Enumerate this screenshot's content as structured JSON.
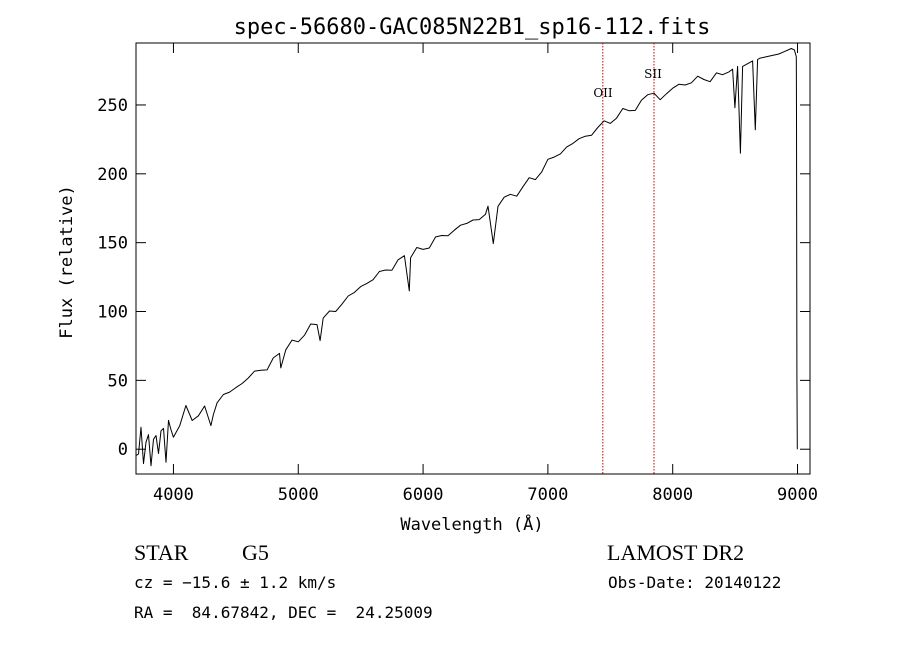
{
  "chart_data": {
    "type": "line",
    "title": "spec-56680-GAC085N22B1_sp16-112.fits",
    "xlabel": "Wavelength (Å)",
    "ylabel": "Flux (relative)",
    "xlim": [
      3700,
      9100
    ],
    "ylim": [
      -18,
      295
    ],
    "x_ticks": [
      4000,
      5000,
      6000,
      7000,
      8000,
      9000
    ],
    "y_ticks": [
      0,
      50,
      100,
      150,
      200,
      250
    ],
    "grid": false,
    "line_color": "#000000",
    "marker_color": "#cc0000",
    "series": [
      {
        "points": [
          [
            3700,
            2
          ],
          [
            3720,
            -5
          ],
          [
            3740,
            12
          ],
          [
            3760,
            -8
          ],
          [
            3780,
            6
          ],
          [
            3800,
            10
          ],
          [
            3820,
            -12
          ],
          [
            3840,
            5
          ],
          [
            3860,
            12
          ],
          [
            3880,
            0
          ],
          [
            3900,
            8
          ],
          [
            3920,
            14
          ],
          [
            3940,
            -2
          ],
          [
            3960,
            18
          ],
          [
            3980,
            8
          ],
          [
            4000,
            15
          ],
          [
            4050,
            20
          ],
          [
            4100,
            24
          ],
          [
            4150,
            22
          ],
          [
            4200,
            30
          ],
          [
            4250,
            28
          ],
          [
            4300,
            15
          ],
          [
            4320,
            30
          ],
          [
            4350,
            34
          ],
          [
            4400,
            38
          ],
          [
            4450,
            42
          ],
          [
            4500,
            45
          ],
          [
            4550,
            48
          ],
          [
            4600,
            52
          ],
          [
            4650,
            55
          ],
          [
            4700,
            58
          ],
          [
            4750,
            60
          ],
          [
            4800,
            64
          ],
          [
            4850,
            68
          ],
          [
            4860,
            62
          ],
          [
            4900,
            72
          ],
          [
            4950,
            76
          ],
          [
            5000,
            80
          ],
          [
            5050,
            85
          ],
          [
            5100,
            88
          ],
          [
            5150,
            90
          ],
          [
            5175,
            82
          ],
          [
            5200,
            94
          ],
          [
            5250,
            98
          ],
          [
            5300,
            102
          ],
          [
            5350,
            106
          ],
          [
            5400,
            110
          ],
          [
            5450,
            114
          ],
          [
            5500,
            118
          ],
          [
            5550,
            121
          ],
          [
            5600,
            124
          ],
          [
            5650,
            127
          ],
          [
            5700,
            130
          ],
          [
            5750,
            133
          ],
          [
            5800,
            136
          ],
          [
            5850,
            138
          ],
          [
            5890,
            118
          ],
          [
            5900,
            140
          ],
          [
            5950,
            143
          ],
          [
            6000,
            146
          ],
          [
            6050,
            149
          ],
          [
            6100,
            152
          ],
          [
            6150,
            154
          ],
          [
            6200,
            157
          ],
          [
            6250,
            159
          ],
          [
            6300,
            162
          ],
          [
            6350,
            164
          ],
          [
            6400,
            166
          ],
          [
            6450,
            168
          ],
          [
            6500,
            171
          ],
          [
            6520,
            175
          ],
          [
            6563,
            150
          ],
          [
            6600,
            178
          ],
          [
            6650,
            181
          ],
          [
            6700,
            184
          ],
          [
            6750,
            187
          ],
          [
            6800,
            190
          ],
          [
            6850,
            194
          ],
          [
            6900,
            198
          ],
          [
            6950,
            203
          ],
          [
            7000,
            208
          ],
          [
            7050,
            212
          ],
          [
            7100,
            216
          ],
          [
            7150,
            219
          ],
          [
            7200,
            222
          ],
          [
            7250,
            225
          ],
          [
            7300,
            227
          ],
          [
            7350,
            230
          ],
          [
            7400,
            233
          ],
          [
            7450,
            236
          ],
          [
            7500,
            239
          ],
          [
            7550,
            242
          ],
          [
            7600,
            244
          ],
          [
            7650,
            246
          ],
          [
            7700,
            249
          ],
          [
            7750,
            252
          ],
          [
            7800,
            256
          ],
          [
            7850,
            260
          ],
          [
            7900,
            254
          ],
          [
            7950,
            258
          ],
          [
            8000,
            262
          ],
          [
            8050,
            264
          ],
          [
            8100,
            266
          ],
          [
            8150,
            267
          ],
          [
            8200,
            268
          ],
          [
            8250,
            269
          ],
          [
            8300,
            270
          ],
          [
            8350,
            271
          ],
          [
            8400,
            272
          ],
          [
            8450,
            274
          ],
          [
            8480,
            276
          ],
          [
            8498,
            248
          ],
          [
            8520,
            278
          ],
          [
            8542,
            215
          ],
          [
            8560,
            278
          ],
          [
            8600,
            280
          ],
          [
            8640,
            282
          ],
          [
            8662,
            232
          ],
          [
            8680,
            283
          ],
          [
            8700,
            284
          ],
          [
            8750,
            285
          ],
          [
            8800,
            286
          ],
          [
            8850,
            287
          ],
          [
            8900,
            289
          ],
          [
            8950,
            291
          ],
          [
            8975,
            290
          ],
          [
            8990,
            285
          ],
          [
            8992,
            245
          ],
          [
            8995,
            55
          ],
          [
            8998,
            0
          ]
        ]
      }
    ],
    "markers": [
      {
        "x": 7440,
        "label": "OII"
      },
      {
        "x": 7850,
        "label": "SII"
      }
    ]
  },
  "footer": {
    "object_class": "STAR",
    "subclass": "G5",
    "survey": "LAMOST DR2",
    "redshift": "cz = −15.6 ± 1.2 km/s",
    "obs_date": "Obs-Date: 20140122",
    "coords": "RA =  84.67842, DEC =  24.25009"
  }
}
